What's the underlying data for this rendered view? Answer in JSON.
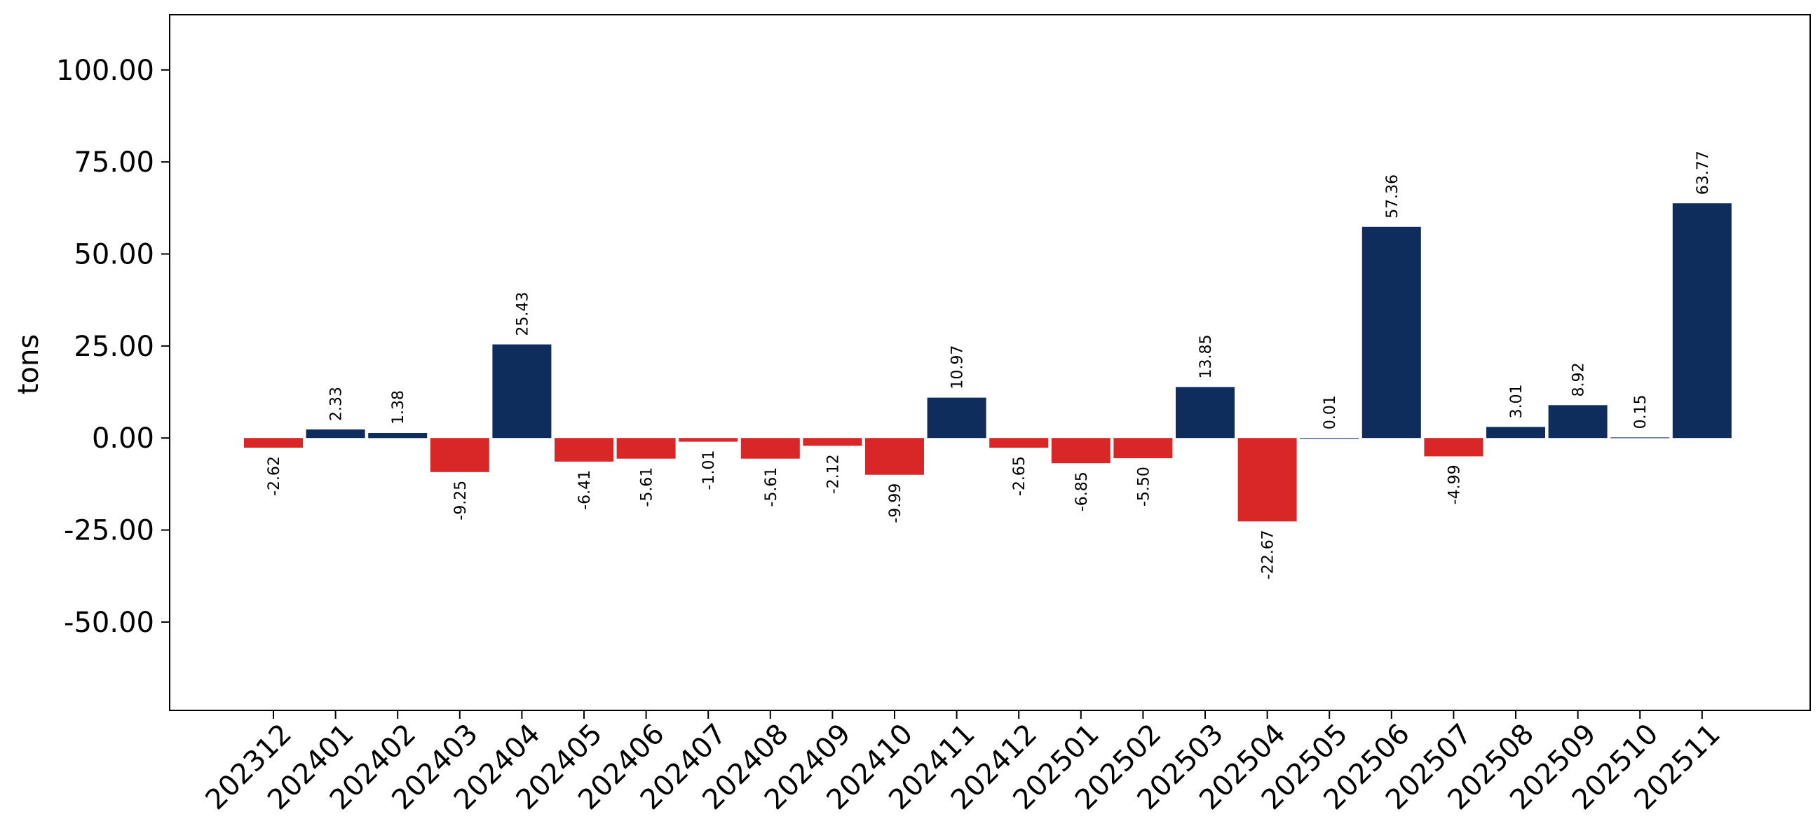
{
  "chart_data": {
    "type": "bar",
    "ylabel": "tons",
    "xlabel": "",
    "ylim": [
      -74,
      115
    ],
    "yticks": [
      -50,
      -25,
      0,
      25,
      50,
      75,
      100
    ],
    "ytick_labels": [
      "-50.00",
      "-25.00",
      "0.00",
      "25.00",
      "50.00",
      "75.00",
      "100.00"
    ],
    "grid": false,
    "categories": [
      "202312",
      "202401",
      "202402",
      "202403",
      "202404",
      "202405",
      "202406",
      "202407",
      "202408",
      "202409",
      "202410",
      "202411",
      "202412",
      "202501",
      "202502",
      "202503",
      "202504",
      "202505",
      "202506",
      "202507",
      "202508",
      "202509",
      "202510",
      "202511"
    ],
    "values": [
      -2.62,
      2.33,
      1.38,
      -9.25,
      25.43,
      -6.41,
      -5.61,
      -1.01,
      -5.61,
      -2.12,
      -9.99,
      10.97,
      -2.65,
      -6.85,
      -5.5,
      13.85,
      -22.67,
      0.01,
      57.36,
      -4.99,
      3.01,
      8.92,
      0.15,
      63.77
    ],
    "value_labels": [
      "-2.62",
      "2.33",
      "1.38",
      "-9.25",
      "25.43",
      "-6.41",
      "-5.61",
      "-1.01",
      "-5.61",
      "-2.12",
      "-9.99",
      "10.97",
      "-2.65",
      "-6.85",
      "-5.50",
      "13.85",
      "-22.67",
      "0.01",
      "57.36",
      "-4.99",
      "3.01",
      "8.92",
      "0.15",
      "63.77"
    ],
    "colors": {
      "positive": "#0e2c5c",
      "negative": "#d92727"
    }
  }
}
